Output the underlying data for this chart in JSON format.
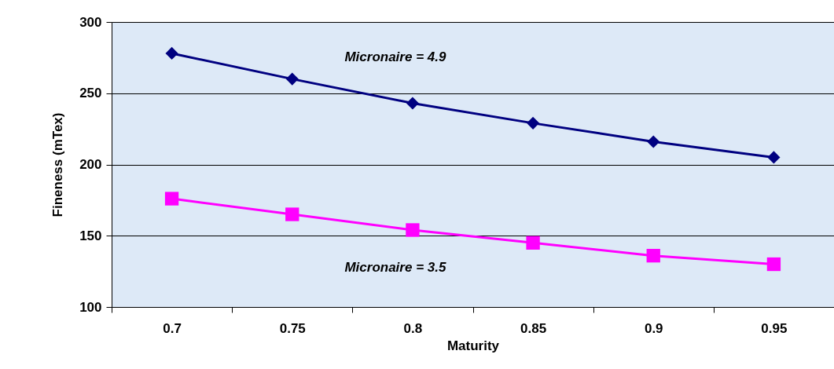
{
  "chart_data": {
    "type": "line",
    "xlabel": "Maturity",
    "ylabel": "Fineness (mTex)",
    "categories": [
      "0.7",
      "0.75",
      "0.8",
      "0.85",
      "0.9",
      "0.95"
    ],
    "series": [
      {
        "name": "Micronaire = 4.9",
        "color": "#000080",
        "marker": "diamond",
        "values": [
          278,
          260,
          243,
          229,
          216,
          205
        ]
      },
      {
        "name": "Micronaire = 3.5",
        "color": "#ff00ff",
        "marker": "square",
        "values": [
          176,
          165,
          154,
          145,
          136,
          130
        ]
      }
    ],
    "ylim": [
      100,
      300
    ],
    "yticks": [
      100,
      150,
      200,
      250,
      300
    ],
    "grid": "y",
    "line_style": "solid"
  }
}
